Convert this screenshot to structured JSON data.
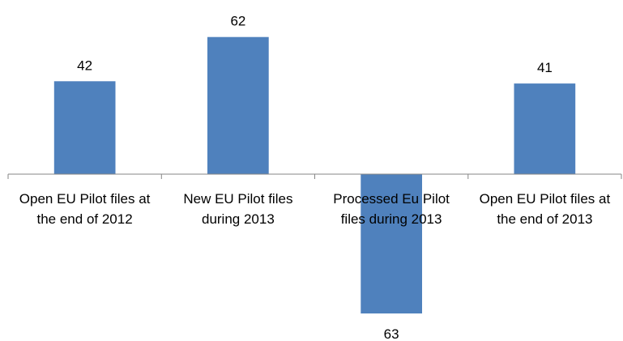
{
  "chart_data": {
    "type": "bar",
    "categories": [
      [
        "Open EU Pilot files at",
        "the end of 2012"
      ],
      [
        "New EU Pilot files",
        "during 2013"
      ],
      [
        "Processed Eu Pilot",
        "files during 2013"
      ],
      [
        "Open EU Pilot files at",
        "the end of 2013"
      ]
    ],
    "values": [
      42,
      62,
      -63,
      41
    ],
    "data_labels": [
      "42",
      "62",
      "63",
      "41"
    ],
    "title": "",
    "xlabel": "",
    "ylabel": "",
    "ylim": [
      -63,
      62
    ],
    "grid": false,
    "legend": "none",
    "bar_color": "#4F81BD",
    "axis_color": "#868686"
  }
}
